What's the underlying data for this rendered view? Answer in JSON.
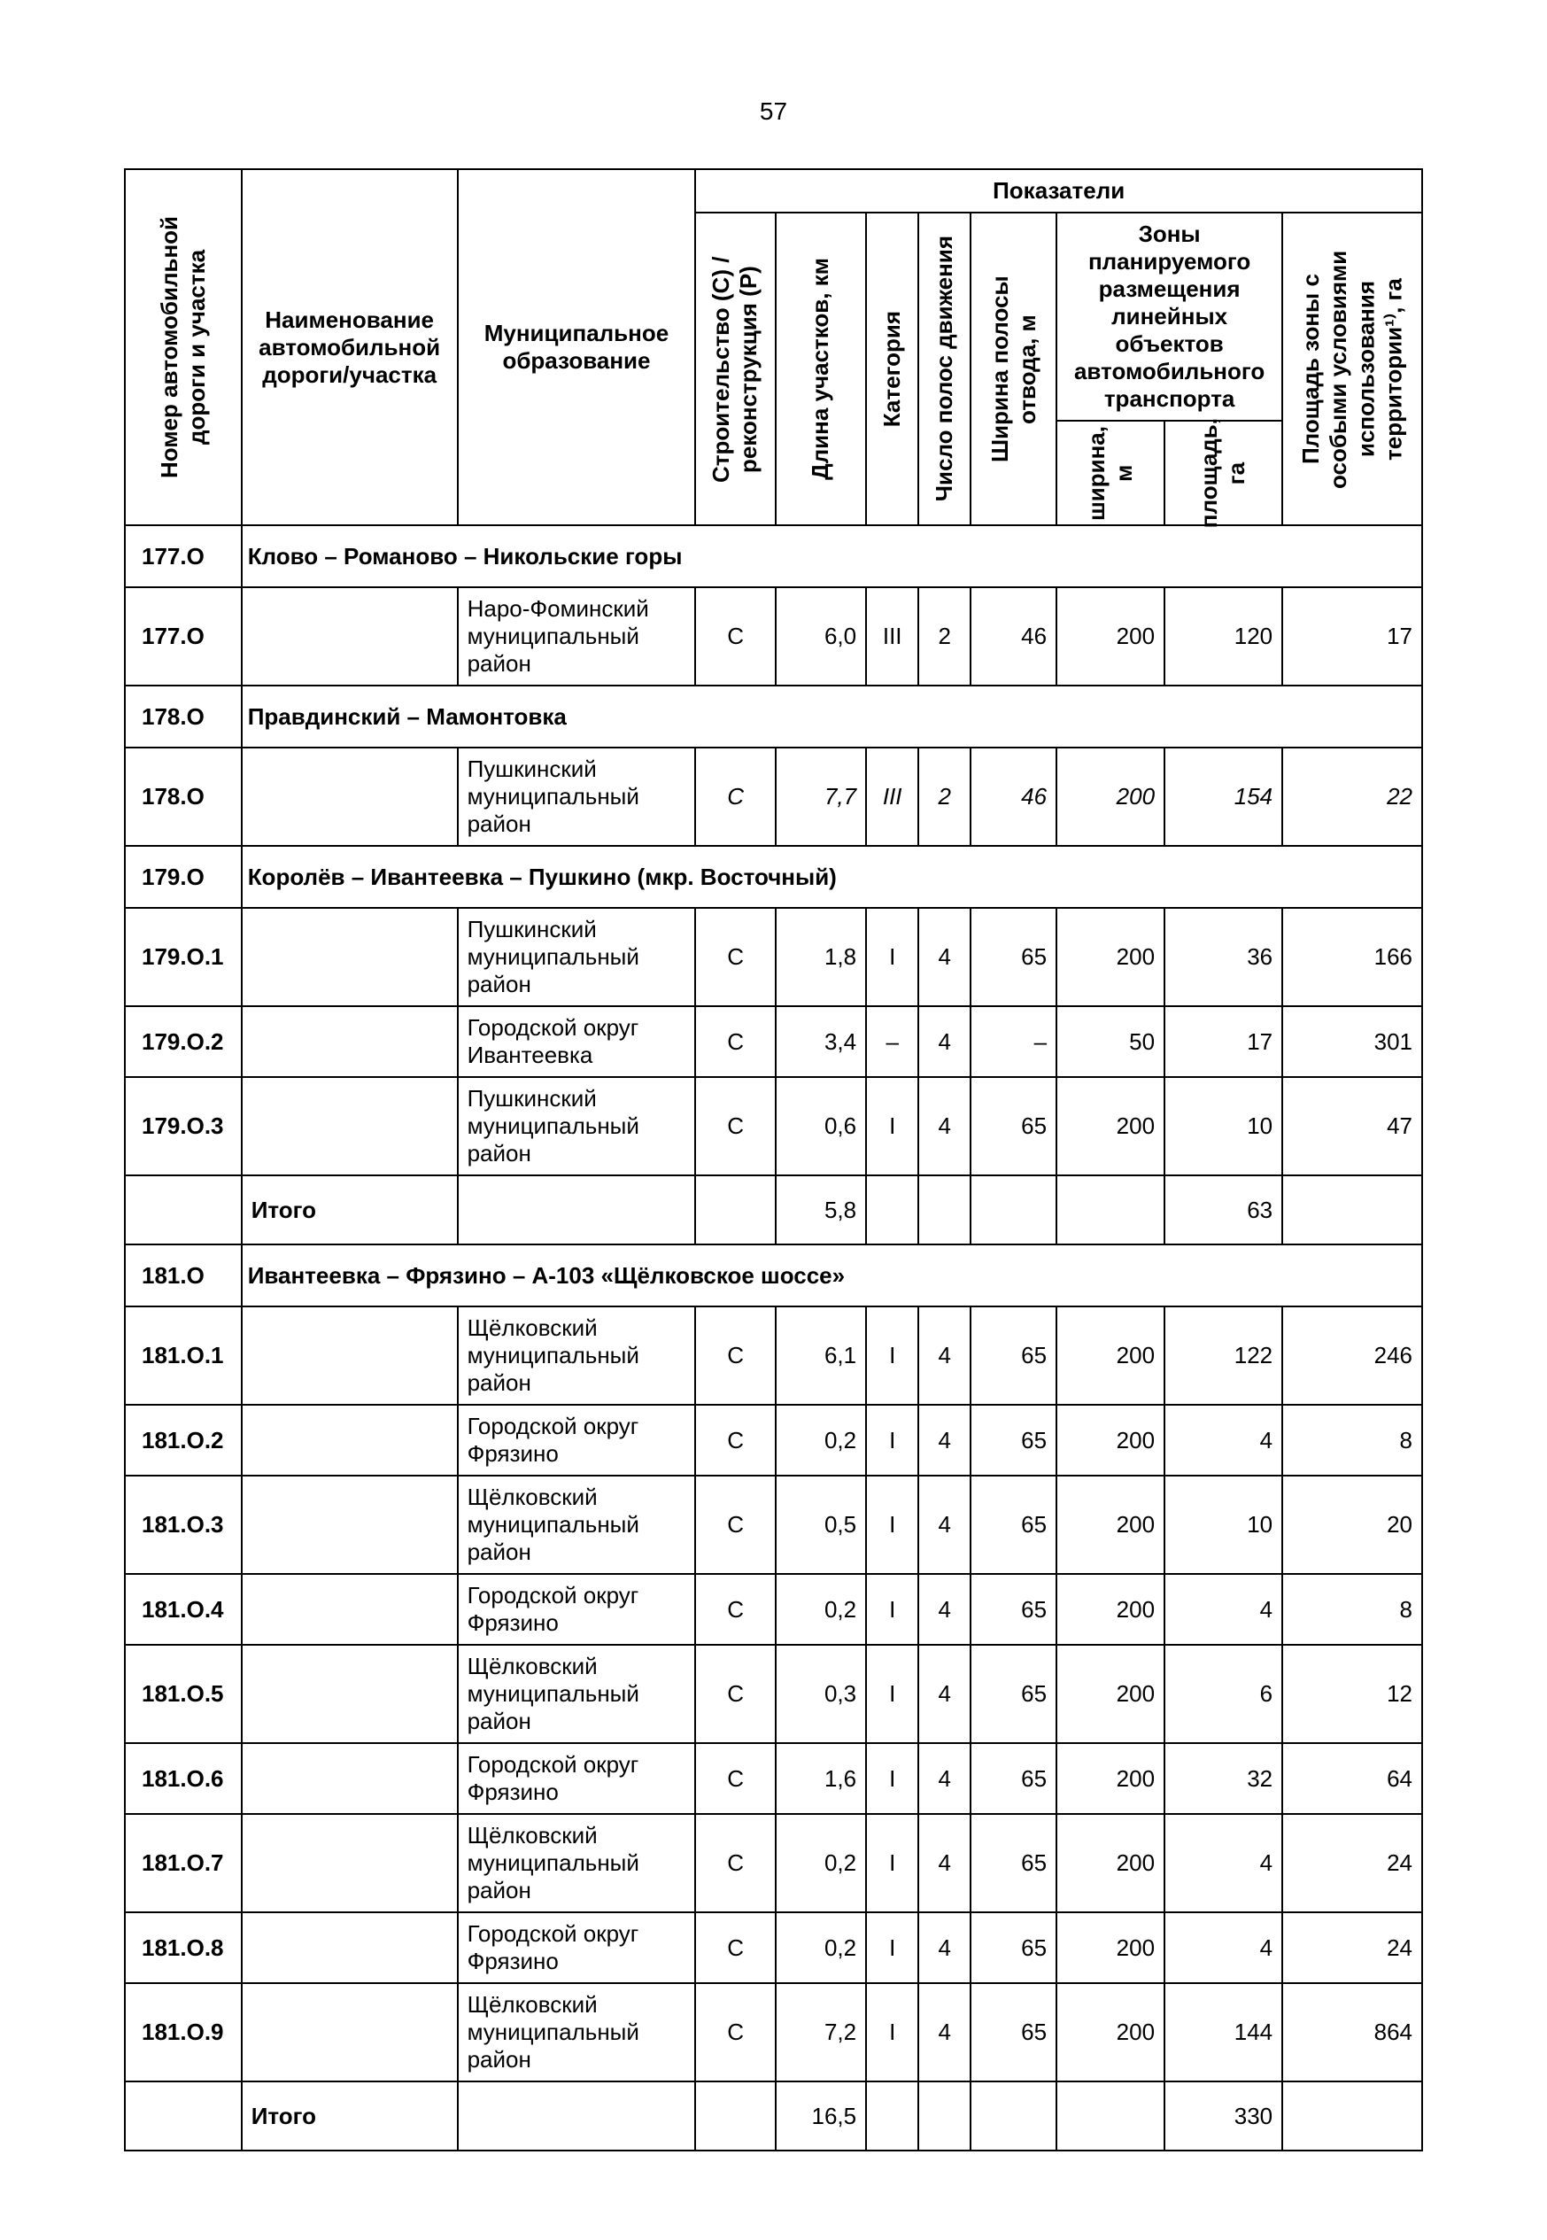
{
  "page_number": "57",
  "headers": {
    "road_no": "Номер автомобильной дороги и участка",
    "road_name": "Наименование автомобильной дороги/участка",
    "municipality": "Муниципальное образование",
    "indicators": "Показатели",
    "build": "Строительство (С) / реконструкция (Р)",
    "length": "Длина участков, км",
    "category": "Категория",
    "lanes": "Число полос движения",
    "row_width": "Ширина полосы отвода, м",
    "zone_group": "Зоны планируемого размещения линейных объектов автомобильного транспорта",
    "zone_width": "ширина, м",
    "zone_area": "площадь, га",
    "special_area": "Площадь зоны с особыми условиями использования территории¹⁾, га"
  },
  "itogo": "Итого",
  "rows": [
    {
      "type": "section",
      "id": "177.О",
      "title": "Клово – Романово – Никольские горы"
    },
    {
      "type": "data",
      "id": "177.О",
      "name": "",
      "mun": "Наро-Фоминский муниципальный район",
      "b": "С",
      "len": "6,0",
      "cat": "III",
      "lanes": "2",
      "row": "46",
      "zw": "200",
      "za": "120",
      "sp": "17"
    },
    {
      "type": "section",
      "id": "178.О",
      "title": "Правдинский – Мамонтовка"
    },
    {
      "type": "data",
      "id": "178.О",
      "name": "",
      "mun": "Пушкинский муниципальный район",
      "b": "С",
      "len": "7,7",
      "cat": "III",
      "lanes": "2",
      "row": "46",
      "zw": "200",
      "za": "154",
      "sp": "22",
      "italic": true
    },
    {
      "type": "section",
      "id": "179.О",
      "title": "Королёв – Ивантеевка – Пушкино (мкр. Восточный)"
    },
    {
      "type": "data",
      "id": "179.О.1",
      "name": "",
      "mun": "Пушкинский муниципальный район",
      "b": "С",
      "len": "1,8",
      "cat": "I",
      "lanes": "4",
      "row": "65",
      "zw": "200",
      "za": "36",
      "sp": "166"
    },
    {
      "type": "data",
      "id": "179.О.2",
      "name": "",
      "mun": "Городской округ Ивантеевка",
      "b": "С",
      "len": "3,4",
      "cat": "–",
      "lanes": "4",
      "row": "–",
      "zw": "50",
      "za": "17",
      "sp": "301"
    },
    {
      "type": "data",
      "id": "179.О.3",
      "name": "",
      "mun": "Пушкинский муниципальный район",
      "b": "С",
      "len": "0,6",
      "cat": "I",
      "lanes": "4",
      "row": "65",
      "zw": "200",
      "za": "10",
      "sp": "47"
    },
    {
      "type": "total",
      "len": "5,8",
      "za": "63"
    },
    {
      "type": "section",
      "id": "181.О",
      "title": "Ивантеевка – Фрязино – А-103 «Щёлковское шоссе»"
    },
    {
      "type": "data",
      "id": "181.О.1",
      "name": "",
      "mun": "Щёлковский муниципальный район",
      "b": "С",
      "len": "6,1",
      "cat": "I",
      "lanes": "4",
      "row": "65",
      "zw": "200",
      "za": "122",
      "sp": "246"
    },
    {
      "type": "data",
      "id": "181.О.2",
      "name": "",
      "mun": "Городской округ Фрязино",
      "b": "С",
      "len": "0,2",
      "cat": "I",
      "lanes": "4",
      "row": "65",
      "zw": "200",
      "za": "4",
      "sp": "8"
    },
    {
      "type": "data",
      "id": "181.О.3",
      "name": "",
      "mun": "Щёлковский муниципальный район",
      "b": "С",
      "len": "0,5",
      "cat": "I",
      "lanes": "4",
      "row": "65",
      "zw": "200",
      "za": "10",
      "sp": "20"
    },
    {
      "type": "data",
      "id": "181.О.4",
      "name": "",
      "mun": "Городской округ Фрязино",
      "b": "С",
      "len": "0,2",
      "cat": "I",
      "lanes": "4",
      "row": "65",
      "zw": "200",
      "za": "4",
      "sp": "8"
    },
    {
      "type": "data",
      "id": "181.О.5",
      "name": "",
      "mun": "Щёлковский муниципальный район",
      "b": "С",
      "len": "0,3",
      "cat": "I",
      "lanes": "4",
      "row": "65",
      "zw": "200",
      "za": "6",
      "sp": "12"
    },
    {
      "type": "data",
      "id": "181.О.6",
      "name": "",
      "mun": "Городской округ Фрязино",
      "b": "С",
      "len": "1,6",
      "cat": "I",
      "lanes": "4",
      "row": "65",
      "zw": "200",
      "za": "32",
      "sp": "64"
    },
    {
      "type": "data",
      "id": "181.О.7",
      "name": "",
      "mun": "Щёлковский муниципальный район",
      "b": "С",
      "len": "0,2",
      "cat": "I",
      "lanes": "4",
      "row": "65",
      "zw": "200",
      "za": "4",
      "sp": "24"
    },
    {
      "type": "data",
      "id": "181.О.8",
      "name": "",
      "mun": "Городской округ Фрязино",
      "b": "С",
      "len": "0,2",
      "cat": "I",
      "lanes": "4",
      "row": "65",
      "zw": "200",
      "za": "4",
      "sp": "24"
    },
    {
      "type": "data",
      "id": "181.О.9",
      "name": "",
      "mun": "Щёлковский муниципальный район",
      "b": "С",
      "len": "7,2",
      "cat": "I",
      "lanes": "4",
      "row": "65",
      "zw": "200",
      "za": "144",
      "sp": "864"
    },
    {
      "type": "total",
      "len": "16,5",
      "za": "330"
    }
  ]
}
